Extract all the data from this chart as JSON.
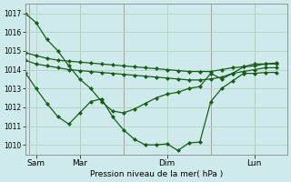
{
  "background_color": "#ceeaea",
  "grid_color": "#b0d4c8",
  "line_color": "#1a5c1a",
  "title": "Pression niveau de la mer( hPa )",
  "ylim": [
    1009.5,
    1017.5
  ],
  "yticks": [
    1010,
    1011,
    1012,
    1013,
    1014,
    1015,
    1016,
    1017
  ],
  "xlim": [
    0,
    72
  ],
  "xtick_positions": [
    3,
    15,
    27,
    51,
    63
  ],
  "xtick_labels": [
    "Sam",
    "Mar",
    "Dim",
    "Lun",
    ""
  ],
  "vline_positions": [
    1,
    15,
    27,
    51,
    63
  ],
  "line1_x": [
    0,
    3,
    6,
    9,
    12,
    15,
    18,
    21,
    24,
    27,
    30,
    33,
    36,
    39,
    42,
    45,
    48,
    51,
    54,
    57,
    60,
    63,
    66,
    69
  ],
  "line1_y": [
    1014.9,
    1014.75,
    1014.6,
    1014.5,
    1014.45,
    1014.4,
    1014.35,
    1014.3,
    1014.25,
    1014.2,
    1014.15,
    1014.1,
    1014.05,
    1014.0,
    1013.95,
    1013.9,
    1013.9,
    1013.9,
    1014.0,
    1014.1,
    1014.15,
    1014.2,
    1014.3,
    1014.35
  ],
  "line2_x": [
    0,
    3,
    6,
    9,
    12,
    15,
    18,
    21,
    24,
    27,
    30,
    33,
    36,
    39,
    42,
    45,
    48,
    51,
    54,
    57,
    60,
    63,
    66,
    69
  ],
  "line2_y": [
    1014.5,
    1014.3,
    1014.2,
    1014.1,
    1014.0,
    1013.95,
    1013.9,
    1013.85,
    1013.8,
    1013.75,
    1013.7,
    1013.65,
    1013.6,
    1013.55,
    1013.5,
    1013.45,
    1013.45,
    1013.5,
    1013.6,
    1013.8,
    1013.9,
    1014.0,
    1014.1,
    1014.1
  ],
  "line3_x": [
    0,
    3,
    6,
    9,
    12,
    15,
    18,
    21,
    24,
    27,
    30,
    33,
    36,
    39,
    42,
    45,
    48,
    51,
    54,
    57,
    60,
    63,
    66,
    69
  ],
  "line3_y": [
    1017.0,
    1016.5,
    1015.6,
    1015.0,
    1014.2,
    1013.5,
    1013.0,
    1012.3,
    1011.8,
    1011.7,
    1011.9,
    1012.2,
    1012.5,
    1012.7,
    1012.8,
    1013.0,
    1013.1,
    1013.8,
    1013.5,
    1013.8,
    1014.15,
    1014.3,
    1014.3,
    1014.3
  ],
  "line4_x": [
    0,
    3,
    6,
    9,
    12,
    15,
    18,
    21,
    24,
    27,
    30,
    33,
    36,
    39,
    42,
    45,
    48,
    51,
    54,
    57,
    60,
    63,
    66,
    69
  ],
  "line4_y": [
    1013.85,
    1013.0,
    1012.2,
    1011.5,
    1011.1,
    1011.7,
    1012.3,
    1012.45,
    1011.5,
    1010.8,
    1010.3,
    1010.0,
    1010.0,
    1010.05,
    1009.7,
    1010.1,
    1010.15,
    1012.3,
    1013.0,
    1013.4,
    1013.8,
    1013.8,
    1013.85,
    1013.85
  ]
}
